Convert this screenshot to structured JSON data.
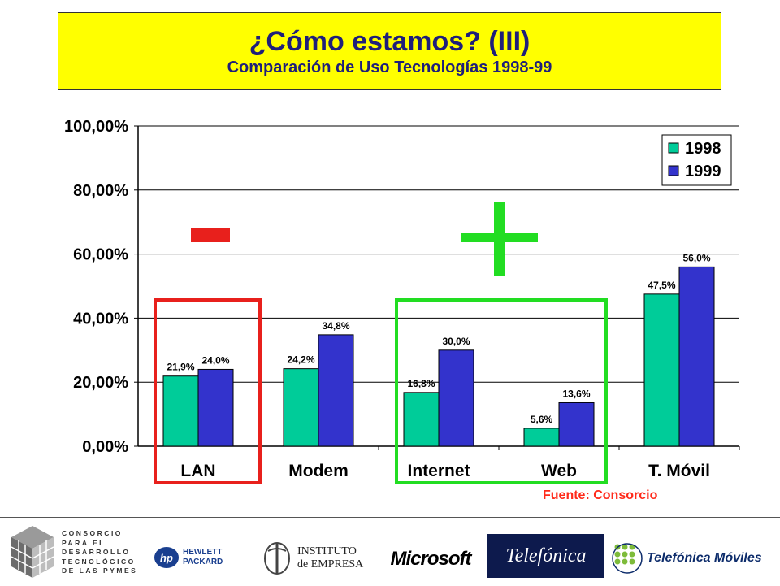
{
  "title": {
    "main": "¿Cómo estamos? (III)",
    "sub": "Comparación de Uso Tecnologías 1998-99"
  },
  "chart_data": {
    "type": "bar",
    "categories": [
      "LAN",
      "Modem",
      "Internet",
      "Web",
      "T. Móvil"
    ],
    "series": [
      {
        "name": "1998",
        "color": "#00cc99",
        "values": [
          21.9,
          24.2,
          16.8,
          5.6,
          47.5
        ],
        "labels": [
          "21,9%",
          "24,2%",
          "16,8%",
          "5,6%",
          "47,5%"
        ]
      },
      {
        "name": "1999",
        "color": "#3333cc",
        "values": [
          24.0,
          34.8,
          30.0,
          13.6,
          56.0
        ],
        "labels": [
          "24,0%",
          "34,8%",
          "30,0%",
          "13,6%",
          "56,0%"
        ]
      }
    ],
    "ylim": [
      0,
      100
    ],
    "yticks": [
      "0,00%",
      "20,00%",
      "40,00%",
      "60,00%",
      "80,00%",
      "100,00%"
    ],
    "ytick_values": [
      0,
      20,
      40,
      60,
      80,
      100
    ],
    "legend": "top-right",
    "grid": true,
    "annotations": {
      "minus": {
        "symbol": "-",
        "color": "#e8201c"
      },
      "plus": {
        "symbol": "+",
        "color": "#22dd22"
      }
    }
  },
  "source": "Fuente: Consorcio",
  "footer": {
    "consorcio_lines": [
      "CONSORCIO",
      "PARA EL",
      "DESARROLLO",
      "TECNOLÓGICO",
      "DE LAS PYMES"
    ],
    "hp_mark": "hp",
    "hp_line1": "HEWLETT",
    "hp_line2": "PACKARD",
    "ie_line1": "INSTITUTO",
    "ie_line2": "de EMPRESA",
    "microsoft": "Microsoft",
    "telefonica": "Telefónica",
    "telefonica_moviles": "Telefónica Móviles"
  }
}
